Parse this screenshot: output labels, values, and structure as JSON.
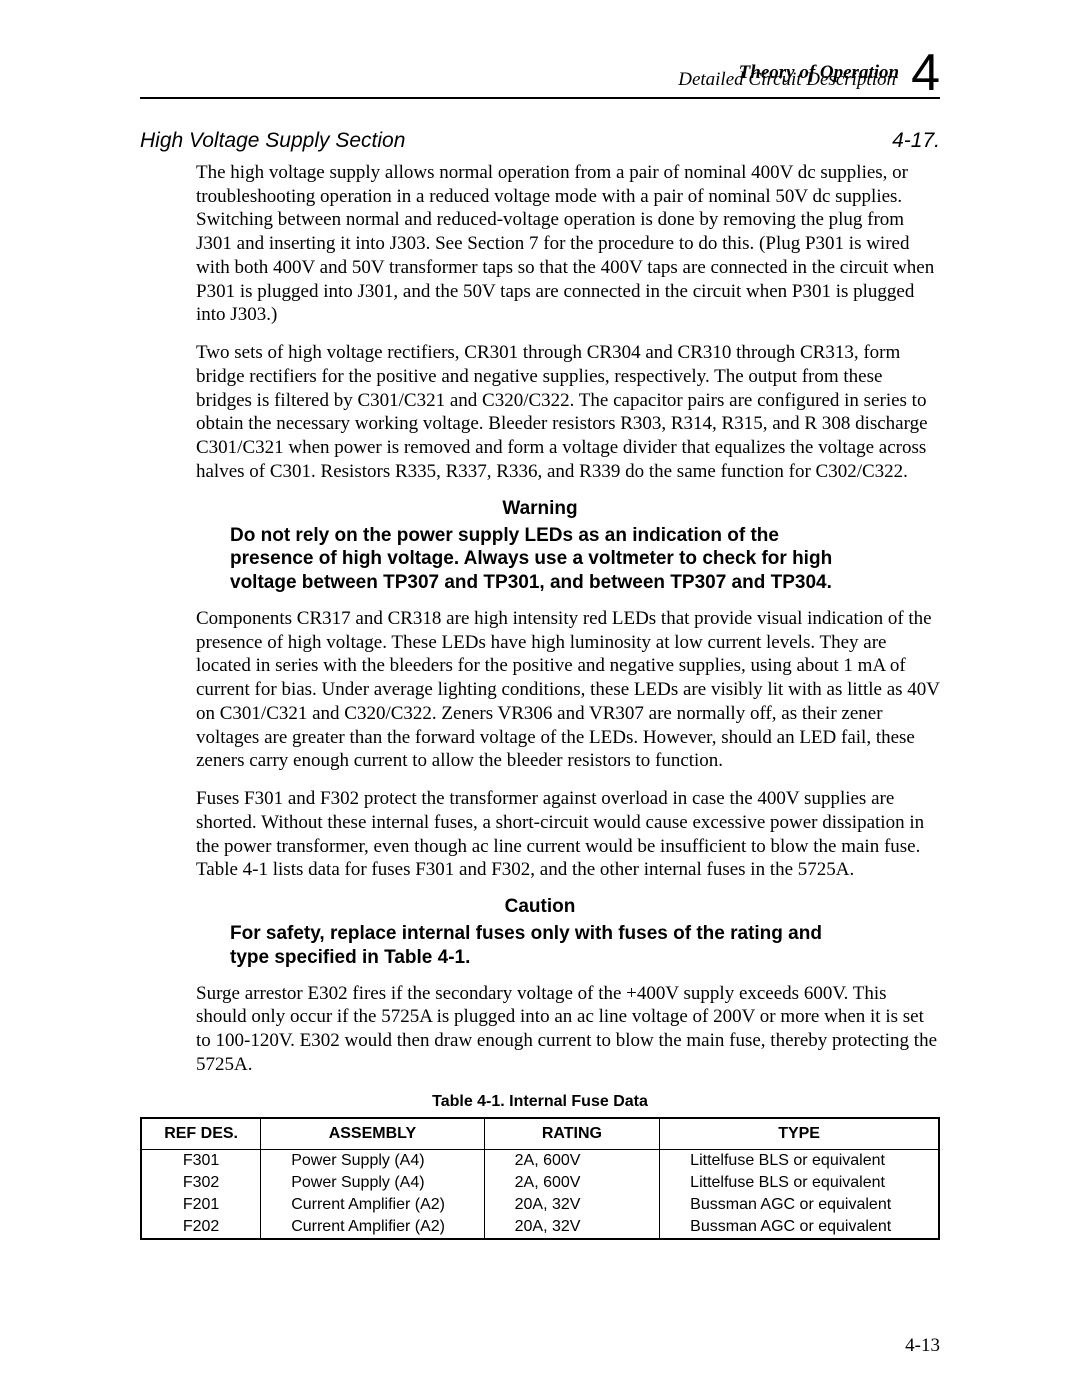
{
  "header": {
    "chapter_title": "Theory of Operation",
    "subtitle": "Detailed Circuit Description",
    "chapter_number": "4"
  },
  "section": {
    "title": "High Voltage Supply Section",
    "number": "4-17."
  },
  "paragraphs": {
    "p1": "The high voltage supply allows normal operation from a pair of nominal 400V dc supplies, or troubleshooting operation in a reduced voltage mode with a pair of nominal 50V dc supplies. Switching between normal and reduced-voltage operation is done by removing the plug from J301 and inserting it into J303. See Section 7 for the procedure to do this. (Plug P301 is wired with both 400V and 50V transformer taps so that the 400V taps are connected in the circuit when P301 is plugged into J301, and the 50V taps are connected in the circuit when P301 is plugged into J303.)",
    "p2": "Two sets of high voltage rectifiers, CR301 through CR304 and CR310 through CR313, form bridge rectifiers for the positive and negative supplies, respectively. The output from these bridges is filtered by C301/C321 and C320/C322. The capacitor pairs are configured in series to obtain the necessary working voltage. Bleeder resistors R303, R314, R315, and R 308 discharge C301/C321 when power is removed and form a voltage divider that equalizes the voltage across halves of C301. Resistors R335, R337, R336, and R339 do the same function for C302/C322.",
    "warning_title": "Warning",
    "warning_body": "Do not rely on the power supply LEDs as an indication of the presence of high voltage. Always use a voltmeter to check for high voltage between TP307 and TP301, and between TP307 and TP304.",
    "p3": "Components CR317 and CR318 are high intensity red LEDs that provide visual indication of the presence of high voltage. These LEDs have high luminosity at low current levels. They are located in series with the bleeders for the positive and negative supplies, using about 1 mA of current for bias. Under average lighting conditions, these LEDs are visibly lit with as little as 40V on C301/C321 and C320/C322. Zeners VR306 and VR307 are normally off, as their zener voltages are greater than the forward voltage of the LEDs. However, should an LED fail, these zeners carry enough current to allow the bleeder resistors to function.",
    "p4": "Fuses F301 and F302 protect the transformer against overload in case the 400V supplies are shorted. Without these internal fuses, a short-circuit would cause excessive power dissipation in the power transformer, even though ac line current would be insufficient to blow the main fuse. Table 4-1 lists data for fuses F301 and F302, and the other internal fuses in the 5725A.",
    "caution_title": "Caution",
    "caution_body": "For safety, replace internal fuses only with fuses of the rating and type specified in Table 4-1.",
    "p5": "Surge arrestor E302 fires if the secondary voltage of the +400V supply exceeds 600V. This should only occur if the 5725A is plugged into an ac line voltage of 200V or more when it is set to 100-120V. E302 would then draw enough current to blow the main fuse, thereby protecting the 5725A."
  },
  "table": {
    "caption": "Table 4-1. Internal Fuse Data",
    "columns": [
      "REF DES.",
      "ASSEMBLY",
      "RATING",
      "TYPE"
    ],
    "rows": [
      [
        "F301",
        "Power Supply (A4)",
        "2A, 600V",
        "Littelfuse BLS or equivalent"
      ],
      [
        "F302",
        "Power Supply (A4)",
        "2A, 600V",
        "Littelfuse BLS or equivalent"
      ],
      [
        "F201",
        "Current Amplifier (A2)",
        "20A, 32V",
        "Bussman AGC or equivalent"
      ],
      [
        "F202",
        "Current Amplifier (A2)",
        "20A, 32V",
        "Bussman AGC or equivalent"
      ]
    ],
    "col_widths_pct": [
      15,
      28,
      22,
      35
    ],
    "header_font_size_pt": 12,
    "body_font_size_pt": 12,
    "border_color": "#000000"
  },
  "footer": {
    "page_number": "4-13"
  },
  "styling": {
    "background_color": "#ffffff",
    "text_color": "#000000",
    "body_font": "Times New Roman",
    "heading_font": "Arial",
    "body_font_size_pt": 14,
    "chapter_number_font_size_pt": 40,
    "section_title_font_size_pt": 16,
    "rule_color": "#000000"
  }
}
